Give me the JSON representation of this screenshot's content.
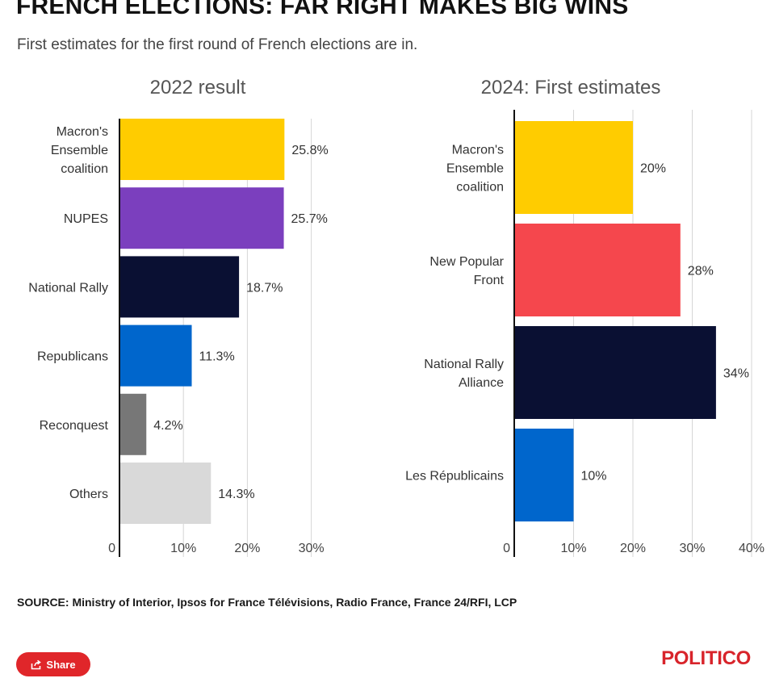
{
  "header": {
    "title": "FRENCH ELECTIONS: FAR RIGHT MAKES BIG WINS",
    "subtitle": "First estimates for the first round of French elections are in."
  },
  "chart_data": [
    {
      "type": "bar",
      "orientation": "horizontal",
      "title": "2022 result",
      "categories": [
        [
          "Macron's",
          "Ensemble",
          "coalition"
        ],
        [
          "NUPES"
        ],
        [
          "National Rally"
        ],
        [
          "Republicans"
        ],
        [
          "Reconquest"
        ],
        [
          "Others"
        ]
      ],
      "values": [
        25.8,
        25.7,
        18.7,
        11.3,
        4.2,
        14.3
      ],
      "value_labels": [
        "25.8%",
        "25.7%",
        "18.7%",
        "11.3%",
        "4.2%",
        "14.3%"
      ],
      "colors": [
        "#ffcc00",
        "#7b3fbe",
        "#0a1033",
        "#0066cc",
        "#777777",
        "#d9d9d9"
      ],
      "xlim": [
        0,
        30
      ],
      "ticks": [
        0,
        10,
        20,
        30
      ],
      "tick_labels": [
        "0",
        "10%",
        "20%",
        "30%"
      ],
      "grid": true
    },
    {
      "type": "bar",
      "orientation": "horizontal",
      "title": "2024: First estimates",
      "categories": [
        [
          "Macron's",
          "Ensemble",
          "coalition"
        ],
        [
          "New Popular",
          "Front"
        ],
        [
          "National Rally",
          "Alliance"
        ],
        [
          "Les Républicains"
        ]
      ],
      "values": [
        20,
        28,
        34,
        10
      ],
      "value_labels": [
        "20%",
        "28%",
        "34%",
        "10%"
      ],
      "colors": [
        "#ffcc00",
        "#f5474d",
        "#0a1033",
        "#0066cc"
      ],
      "xlim": [
        0,
        40
      ],
      "ticks": [
        0,
        10,
        20,
        30,
        40
      ],
      "tick_labels": [
        "0",
        "10%",
        "20%",
        "30%",
        "40%"
      ],
      "grid": true
    }
  ],
  "footer": {
    "source": "SOURCE: Ministry of Interior, Ipsos for France Télévisions, Radio France, France 24/RFI, LCP",
    "share_label": "Share",
    "brand": "POLITICO"
  }
}
